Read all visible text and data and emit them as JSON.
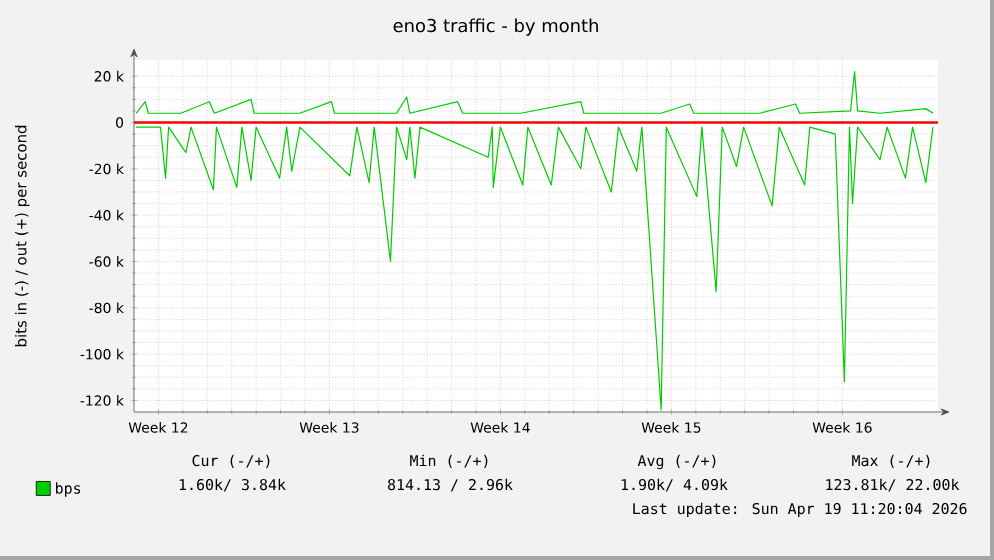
{
  "chart_data": {
    "type": "line",
    "title": "eno3 traffic - by month",
    "ylabel": "bits in (-) / out (+) per second",
    "xlim": [
      "2026-03-18T12:00",
      "2026-04-20T10:00"
    ],
    "ylim": [
      -125000,
      27000
    ],
    "xticks": [
      {
        "value": "2026-03-19T12:00",
        "label": "Week 12"
      },
      {
        "value": "2026-03-26T12:00",
        "label": "Week 13"
      },
      {
        "value": "2026-04-02T12:00",
        "label": "Week 14"
      },
      {
        "value": "2026-04-09T12:00",
        "label": "Week 15"
      },
      {
        "value": "2026-04-16T12:00",
        "label": "Week 16"
      }
    ],
    "yticks": [
      {
        "value": -120000,
        "label": "-120 k"
      },
      {
        "value": -100000,
        "label": "-100 k"
      },
      {
        "value": -80000,
        "label": "-80 k"
      },
      {
        "value": -60000,
        "label": "-60 k"
      },
      {
        "value": -40000,
        "label": "-40 k"
      },
      {
        "value": -20000,
        "label": "-20 k"
      },
      0,
      {
        "value": 20000,
        "label": "20 k"
      }
    ],
    "grid": true,
    "legend": "bottom left",
    "series": [
      {
        "name": "bps",
        "color": "#00cc00",
        "x": [
          "2026-03-18T14:00",
          "2026-03-18T23:00",
          "2026-03-19T02:00",
          "2026-03-20T10:00",
          "2026-03-21T14:00",
          "2026-03-21T19:00",
          "2026-03-23T07:00",
          "2026-03-23T10:00",
          "2026-03-25T07:00",
          "2026-03-26T14:00",
          "2026-03-26T17:00",
          "2026-03-29T06:00",
          "2026-03-29T16:00",
          "2026-03-29T19:00",
          "2026-03-31T18:00",
          "2026-03-31T23:00",
          "2026-04-03T08:00",
          "2026-04-05T19:00",
          "2026-04-05T22:00",
          "2026-04-09T02:00",
          "2026-04-10T06:00",
          "2026-04-10T10:00",
          "2026-04-13T03:00",
          "2026-04-14T14:00",
          "2026-04-14T18:00",
          "2026-04-16T20:00",
          "2026-04-17T00:00",
          "2026-04-17T03:00",
          "2026-04-18T01:00",
          "2026-04-19T22:00",
          "2026-04-20T05:00"
        ],
        "values": [
          4000,
          9000,
          4000,
          4000,
          9000,
          4000,
          10000,
          4000,
          4000,
          9000,
          4000,
          4000,
          11000,
          4000,
          9000,
          4000,
          4000,
          9000,
          4000,
          4000,
          8000,
          4000,
          4000,
          8000,
          4000,
          5000,
          22000,
          5000,
          4000,
          6000,
          4000
        ]
      },
      {
        "color": "#00cc00",
        "x": [
          "2026-03-18T14:00",
          "2026-03-19T14:00",
          "2026-03-19T19:00",
          "2026-03-19T22:00",
          "2026-03-20T15:00",
          "2026-03-20T20:00",
          "2026-03-21T18:00",
          "2026-03-21T21:00",
          "2026-03-22T17:00",
          "2026-03-22T22:00",
          "2026-03-23T07:00",
          "2026-03-23T12:00",
          "2026-03-24T11:00",
          "2026-03-24T18:00",
          "2026-03-24T23:00",
          "2026-03-25T07:00",
          "2026-03-27T08:00",
          "2026-03-27T15:00",
          "2026-03-28T03:00",
          "2026-03-28T08:00",
          "2026-03-29T00:00",
          "2026-03-29T06:00",
          "2026-03-29T16:00",
          "2026-03-29T19:00",
          "2026-03-30T00:00",
          "2026-03-30T05:00",
          "2026-04-02T00:00",
          "2026-04-02T04:00",
          "2026-04-02T05:00",
          "2026-04-02T12:00",
          "2026-04-03T10:00",
          "2026-04-03T15:00",
          "2026-04-04T14:00",
          "2026-04-04T21:00",
          "2026-04-05T19:00",
          "2026-04-06T00:00",
          "2026-04-07T01:00",
          "2026-04-07T08:00",
          "2026-04-08T02:00",
          "2026-04-08T07:00",
          "2026-04-09T02:00",
          "2026-04-09T07:00",
          "2026-04-10T13:00",
          "2026-04-10T18:00",
          "2026-04-11T08:00",
          "2026-04-11T14:00",
          "2026-04-12T04:00",
          "2026-04-12T11:00",
          "2026-04-13T15:00",
          "2026-04-13T22:00",
          "2026-04-14T23:00",
          "2026-04-15T04:00",
          "2026-04-16T05:00",
          "2026-04-16T14:00",
          "2026-04-16T19:00",
          "2026-04-16T22:00",
          "2026-04-17T03:00",
          "2026-04-18T01:00",
          "2026-04-18T08:00",
          "2026-04-19T02:00",
          "2026-04-19T09:00",
          "2026-04-19T22:00",
          "2026-04-20T05:00"
        ],
        "values": [
          -2000,
          -2000,
          -24000,
          -2000,
          -13000,
          -2000,
          -29000,
          -2000,
          -28000,
          -2000,
          -25000,
          -2000,
          -24000,
          -2000,
          -21000,
          -2000,
          -23000,
          -2000,
          -26000,
          -2000,
          -60000,
          -2000,
          -16000,
          -2000,
          -24000,
          -2000,
          -15000,
          -2000,
          -28000,
          -2000,
          -27000,
          -2000,
          -27000,
          -2000,
          -20000,
          -2000,
          -30000,
          -2000,
          -21000,
          -2000,
          -124000,
          -2000,
          -32000,
          -2000,
          -73000,
          -2000,
          -19000,
          -2000,
          -36000,
          -2000,
          -27000,
          -2000,
          -5000,
          -112000,
          -2000,
          -35000,
          -2000,
          -16000,
          -2000,
          -24000,
          -2000,
          -26000,
          -2000
        ]
      }
    ],
    "ref_lines": [
      {
        "axis": "y",
        "value": 0,
        "color": "#ff0000"
      }
    ],
    "annotations": [
      "Cur (-/+)",
      "Min (-/+)",
      "Avg (-/+)",
      "Max (-/+)",
      "1.60k/ 3.84k",
      "814.13 / 2.96k",
      "1.90k/ 4.09k",
      "123.81k/ 22.00k",
      "Last update: Sun Apr 19 11:20:04 2026"
    ]
  }
}
